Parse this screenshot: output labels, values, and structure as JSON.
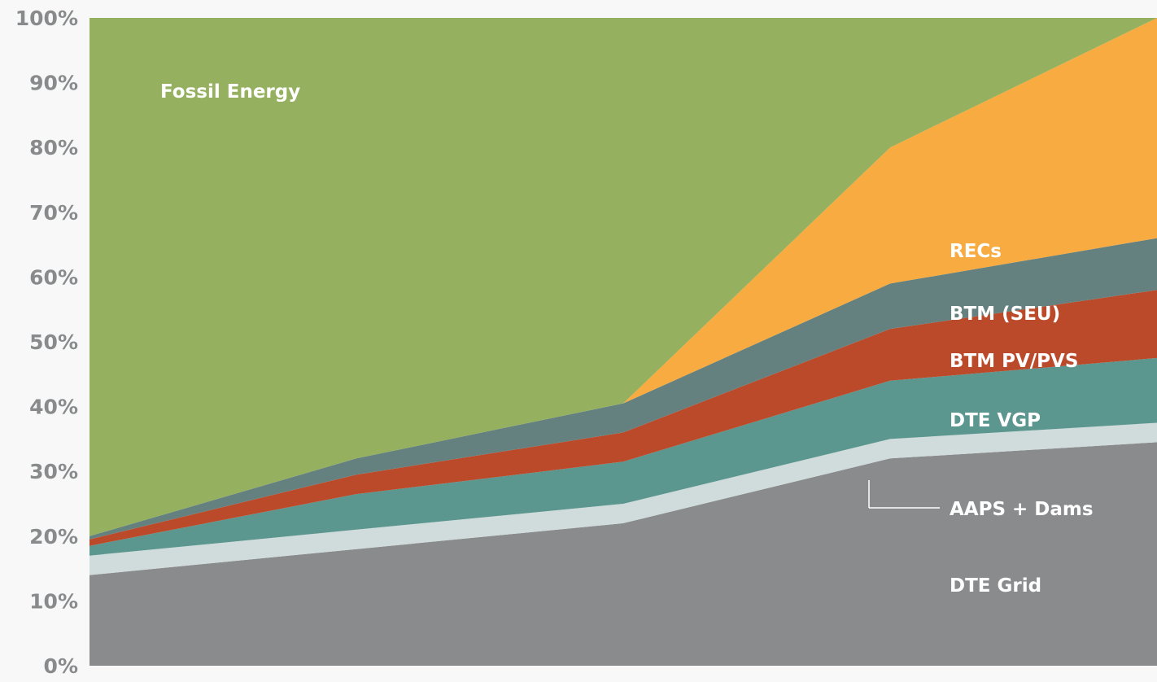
{
  "chart_data": {
    "type": "area",
    "stacked": true,
    "x_count": 5,
    "ylim": [
      0,
      100
    ],
    "y_ticks": [
      "0%",
      "10%",
      "20%",
      "30%",
      "40%",
      "50%",
      "60%",
      "70%",
      "80%",
      "90%",
      "100%"
    ],
    "grid": false,
    "series": [
      {
        "name": "DTE Grid",
        "color": "#8a8b8c",
        "values": [
          14,
          18,
          22,
          32,
          34.5
        ]
      },
      {
        "name": "AAPS + Dams",
        "color": "#d0dbdb",
        "values": [
          3,
          3,
          3,
          3,
          3
        ]
      },
      {
        "name": "DTE VGP",
        "color": "#5b968f",
        "values": [
          1.5,
          5.5,
          6.5,
          9,
          10
        ]
      },
      {
        "name": "BTM PV/PVS",
        "color": "#bb4a2a",
        "values": [
          1,
          3,
          4.5,
          8,
          10.5
        ]
      },
      {
        "name": "BTM (SEU)",
        "color": "#65817f",
        "values": [
          0.5,
          2.5,
          4.5,
          7,
          8
        ]
      },
      {
        "name": "RECs",
        "color": "#f7ab40",
        "values": [
          0,
          0,
          0,
          21,
          34
        ]
      },
      {
        "name": "Fossil Energy",
        "color": "#95b05e",
        "values": [
          80,
          68,
          59.5,
          20,
          0
        ]
      }
    ]
  }
}
